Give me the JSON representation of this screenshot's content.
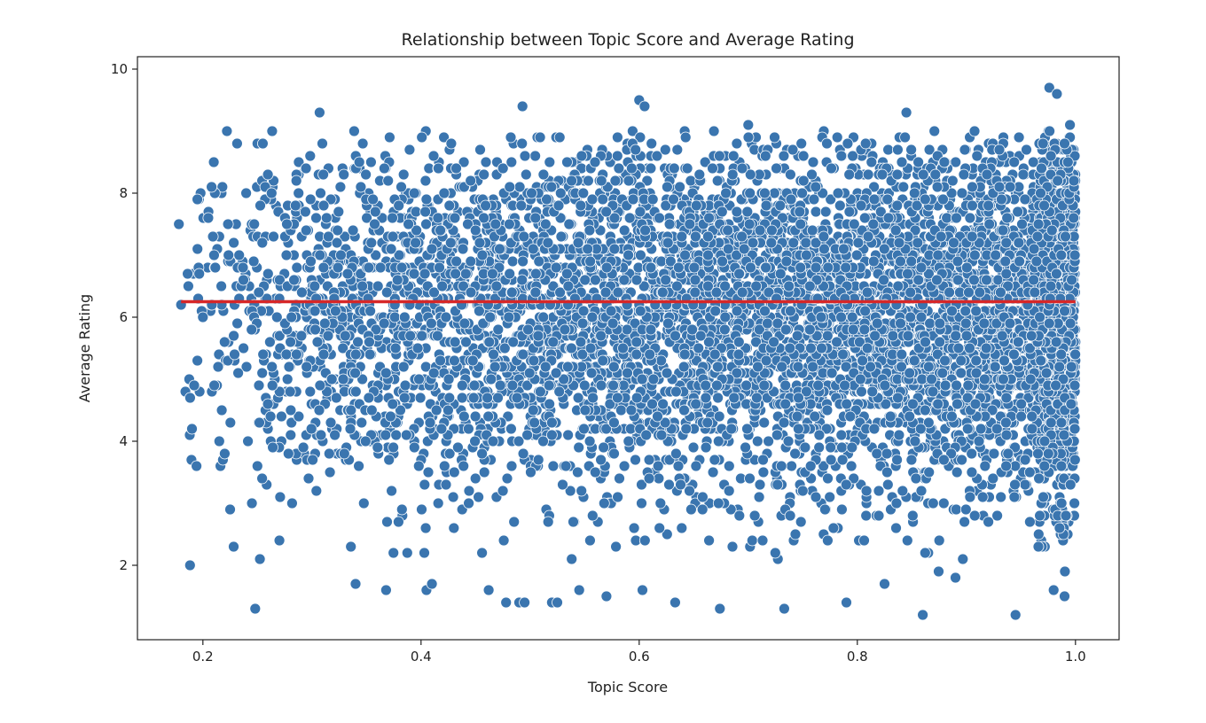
{
  "chart_data": {
    "type": "scatter",
    "title": "Relationship between Topic Score and Average Rating",
    "xlabel": "Topic Score",
    "ylabel": "Average Rating",
    "xlim": [
      0.14,
      1.04
    ],
    "ylim": [
      0.8,
      10.2
    ],
    "xticks": [
      0.2,
      0.4,
      0.6,
      0.8,
      1.0
    ],
    "xtick_labels": [
      "0.2",
      "0.4",
      "0.6",
      "0.8",
      "1.0"
    ],
    "yticks": [
      2,
      4,
      6,
      8,
      10
    ],
    "ytick_labels": [
      "2",
      "4",
      "6",
      "8",
      "10"
    ],
    "grid": false,
    "point_color": "#3a75af",
    "point_edge_color": "#ffffff",
    "trend_color": "#d62728",
    "trend_line": {
      "x": [
        0.18,
        1.0
      ],
      "y": [
        6.25,
        6.25
      ]
    },
    "outlier_points": {
      "x": [
        0.178,
        0.18,
        0.186,
        0.188,
        0.19,
        0.192,
        0.195,
        0.2,
        0.205,
        0.208,
        0.21,
        0.215,
        0.22,
        0.222,
        0.225,
        0.245,
        0.248,
        0.25,
        0.255,
        0.307,
        0.34,
        0.368,
        0.405,
        0.41,
        0.462,
        0.478,
        0.49,
        0.493,
        0.495,
        0.52,
        0.525,
        0.545,
        0.57,
        0.6,
        0.603,
        0.605,
        0.633,
        0.674,
        0.7,
        0.733,
        0.79,
        0.825,
        0.845,
        0.86,
        0.89,
        0.945,
        0.976,
        0.98,
        0.983,
        0.99,
        0.995
      ],
      "y": [
        7.5,
        6.2,
        6.7,
        4.1,
        4.2,
        4.9,
        5.3,
        6.0,
        7.6,
        8.1,
        8.5,
        4.0,
        3.8,
        9.0,
        2.9,
        3.0,
        1.3,
        8.8,
        8.8,
        9.3,
        1.7,
        1.6,
        1.6,
        1.7,
        1.6,
        1.4,
        1.4,
        9.4,
        1.4,
        1.4,
        1.4,
        1.6,
        1.5,
        9.5,
        1.6,
        9.4,
        1.4,
        1.3,
        9.1,
        1.3,
        1.4,
        1.7,
        9.3,
        1.2,
        1.8,
        1.2,
        9.7,
        1.6,
        9.6,
        1.5,
        9.1
      ]
    }
  }
}
